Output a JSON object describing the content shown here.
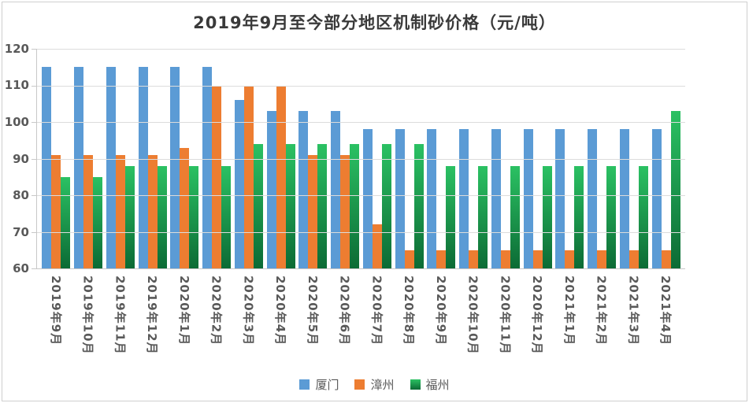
{
  "title": "2019年9月至今部分地区机制砂价格（元/吨）",
  "chart_data": {
    "type": "bar",
    "title": "2019年9月至今部分地区机制砂价格（元/吨）",
    "categories": [
      "2019年9月",
      "2019年10月",
      "2019年11月",
      "2019年12月",
      "2020年1月",
      "2020年2月",
      "2020年3月",
      "2020年4月",
      "2020年5月",
      "2020年6月",
      "2020年7月",
      "2020年8月",
      "2020年9月",
      "2020年10月",
      "2020年11月",
      "2020年12月",
      "2021年1月",
      "2021年2月",
      "2021年3月",
      "2021年4月"
    ],
    "series": [
      {
        "name": "厦门",
        "color": "#5B9BD5",
        "values": [
          115,
          115,
          115,
          115,
          115,
          115,
          106,
          103,
          103,
          103,
          98,
          98,
          98,
          98,
          98,
          98,
          98,
          98,
          98,
          98
        ]
      },
      {
        "name": "漳州",
        "color": "#ED7D31",
        "values": [
          91,
          91,
          91,
          91,
          93,
          110,
          110,
          110,
          91,
          91,
          72,
          65,
          65,
          65,
          65,
          65,
          65,
          65,
          65,
          65
        ]
      },
      {
        "name": "福州",
        "color": "#1EA854",
        "color_top": "#2BC163",
        "color_bottom": "#0C6B35",
        "values": [
          85,
          85,
          88,
          88,
          88,
          88,
          94,
          94,
          94,
          94,
          94,
          94,
          88,
          88,
          88,
          88,
          88,
          88,
          88,
          103
        ]
      }
    ],
    "ylim": [
      60,
      120
    ],
    "yticks": [
      60,
      70,
      80,
      90,
      100,
      110,
      120
    ],
    "xlabel": "",
    "ylabel": "",
    "grid": true,
    "legend_position": "bottom"
  },
  "colors": {
    "gridline": "#DCDCDC",
    "axis_line": "#C8C8C8",
    "axis_text": "#595959",
    "title_text": "#3A3A3A",
    "background": "#FFFFFF",
    "border": "#CFCFCF"
  }
}
